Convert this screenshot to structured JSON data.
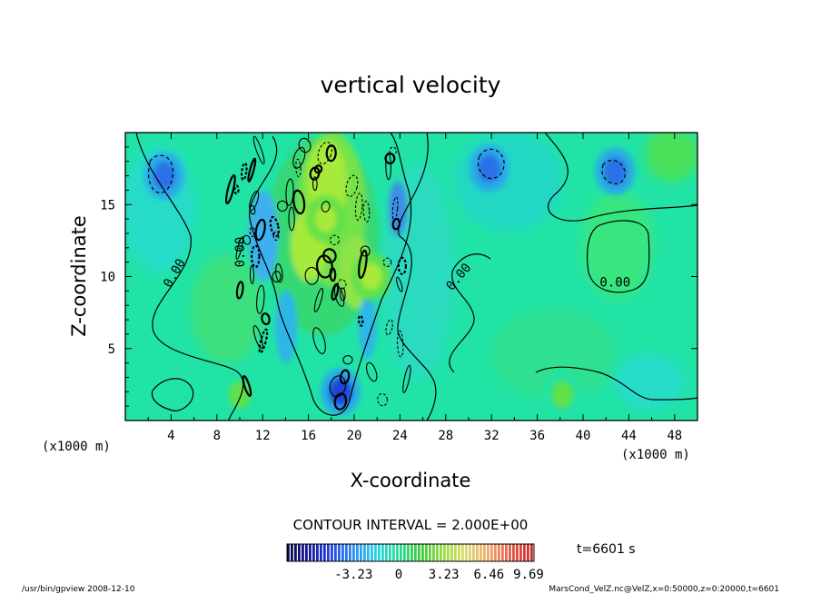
{
  "chart_data": {
    "type": "heatmap",
    "title": "vertical velocity",
    "xlabel": "X-coordinate",
    "ylabel": "Z-coordinate",
    "x_unit_left": "(x1000 m)",
    "x_unit_right": "(x1000 m)",
    "xlim": [
      0,
      50
    ],
    "ylim": [
      0,
      20
    ],
    "x_ticks": [
      4,
      8,
      12,
      16,
      20,
      24,
      28,
      32,
      36,
      40,
      44,
      48
    ],
    "y_ticks": [
      5,
      10,
      15
    ],
    "contour_interval_label": "CONTOUR INTERVAL = 2.000E+00",
    "contour_labels": [
      {
        "text": "0.00",
        "x": 4.6,
        "z": 10.1,
        "rotate": -60
      },
      {
        "text": "0.00",
        "x": 10.4,
        "z": 11.7,
        "rotate": -90
      },
      {
        "text": "0.00",
        "x": 29.4,
        "z": 9.8,
        "rotate": -50
      },
      {
        "text": "0.00",
        "x": 42.8,
        "z": 9.3,
        "rotate": 0
      }
    ],
    "colorbar": {
      "ticks": [
        "-3.23",
        "0",
        "3.23",
        "6.46",
        "9.69"
      ],
      "range": [
        -8.0,
        9.69
      ]
    },
    "time_label": "t=6601 s",
    "features": [
      {
        "kind": "downdraft",
        "x": 3.4,
        "z": 17.0,
        "w": -2.4
      },
      {
        "kind": "downdraft",
        "x": 31.8,
        "z": 17.5,
        "w": -2.6
      },
      {
        "kind": "downdraft",
        "x": 42.8,
        "z": 17.3,
        "w": -2.4
      },
      {
        "kind": "downdraft",
        "x": 18.8,
        "z": 2.0,
        "w": -3.0
      },
      {
        "kind": "updraft",
        "x": 10.0,
        "z": 1.8,
        "w": 1.4
      },
      {
        "kind": "updraft",
        "x": 38.2,
        "z": 1.8,
        "w": 1.4
      },
      {
        "kind": "updraft",
        "x": 17.5,
        "z": 14.0,
        "w": 2.6
      },
      {
        "kind": "updraft",
        "x": 21.5,
        "z": 10.0,
        "w": 2.4
      }
    ]
  },
  "footer": {
    "left": "/usr/bin/gpview   2008-12-10",
    "right": "MarsCond_VelZ.nc@VelZ,x=0:50000,z=0:20000,t=6601"
  }
}
